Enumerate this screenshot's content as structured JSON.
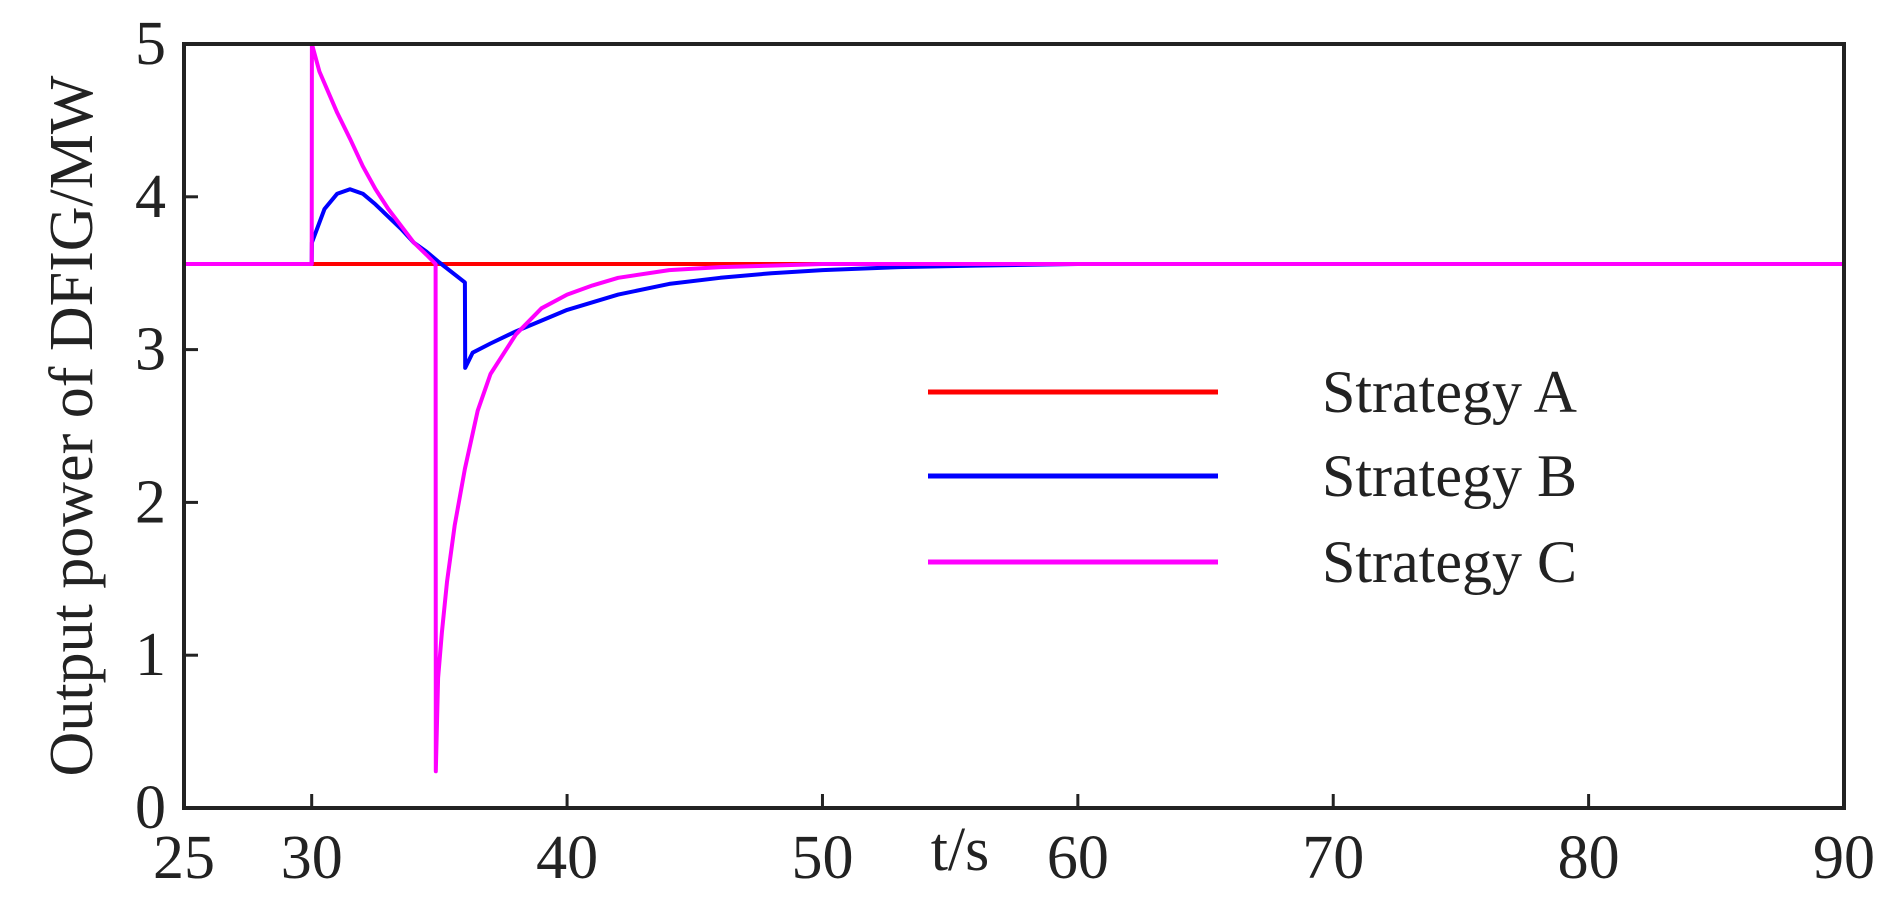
{
  "chart_data": {
    "type": "line",
    "xlabel": "t/s",
    "ylabel": "Output power of DFIG/MW",
    "xlim": [
      25,
      90
    ],
    "ylim": [
      0,
      5
    ],
    "x_ticks": [
      25,
      30,
      40,
      50,
      60,
      70,
      80,
      90
    ],
    "y_ticks": [
      0,
      1,
      2,
      3,
      4,
      5
    ],
    "grid": false,
    "legend_position": "center-right",
    "series": [
      {
        "name": "Strategy A",
        "color": "#ff0000",
        "x": [
          25,
          90
        ],
        "y": [
          3.56,
          3.56
        ]
      },
      {
        "name": "Strategy B",
        "color": "#0000ff",
        "x": [
          25,
          30,
          30.01,
          30.5,
          31,
          31.5,
          32,
          32.5,
          33,
          33.5,
          34,
          34.5,
          35,
          36,
          36.01,
          36.3,
          37,
          38,
          39,
          40,
          42,
          44,
          46,
          48,
          50,
          53,
          56,
          60,
          90
        ],
        "y": [
          3.56,
          3.56,
          3.7,
          3.92,
          4.02,
          4.05,
          4.02,
          3.95,
          3.87,
          3.79,
          3.7,
          3.64,
          3.57,
          3.44,
          2.88,
          2.98,
          3.04,
          3.12,
          3.19,
          3.26,
          3.36,
          3.43,
          3.47,
          3.5,
          3.52,
          3.54,
          3.55,
          3.56,
          3.56
        ]
      },
      {
        "name": "Strategy C",
        "color": "#ff00ff",
        "x": [
          25,
          30,
          30.01,
          30.3,
          31,
          31.5,
          32,
          32.5,
          33,
          33.5,
          34,
          34.5,
          34.85,
          34.86,
          34.95,
          35.1,
          35.3,
          35.6,
          36,
          36.5,
          37,
          38,
          39,
          40,
          41,
          42,
          44,
          46,
          48,
          50,
          90
        ],
        "y": [
          3.56,
          3.56,
          5.0,
          4.82,
          4.55,
          4.38,
          4.2,
          4.05,
          3.92,
          3.81,
          3.7,
          3.62,
          3.56,
          0.24,
          0.85,
          1.15,
          1.48,
          1.85,
          2.22,
          2.6,
          2.84,
          3.1,
          3.27,
          3.36,
          3.42,
          3.47,
          3.52,
          3.54,
          3.55,
          3.56,
          3.56
        ]
      }
    ]
  }
}
